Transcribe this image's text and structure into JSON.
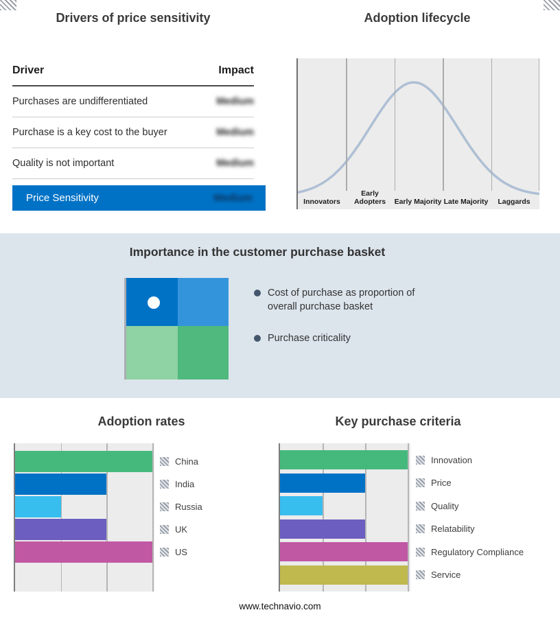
{
  "page": {
    "footer": "www.technavio.com"
  },
  "drivers_panel": {
    "title": "Drivers of price sensitivity",
    "columns": {
      "driver": "Driver",
      "impact": "Impact"
    },
    "rows": [
      {
        "driver": "Purchases are undifferentiated",
        "impact": "Medium",
        "redacted": true
      },
      {
        "driver": "Purchase is a key cost to the buyer",
        "impact": "Medium",
        "redacted": true
      },
      {
        "driver": "Quality is not important",
        "impact": "Medium",
        "redacted": true
      }
    ],
    "summary": {
      "label": "Price Sensitivity",
      "impact": "Medium",
      "redacted": true,
      "bg_color": "#0072C6"
    }
  },
  "basket_panel": {
    "title": "Importance in the customer purchase basket",
    "bullets": [
      "Cost of purchase as proportion of overall purchase basket",
      "Purchase criticality"
    ],
    "quadrant_colors": [
      "#0072C6",
      "#3494DB",
      "#8FD2A4",
      "#4FB97E"
    ],
    "bullet_color": "#44566B"
  },
  "chart_data": [
    {
      "type": "line",
      "title": "Adoption lifecycle",
      "categories": [
        "Innovators",
        "Early Adopters",
        "Early Majority",
        "Late Majority",
        "Laggards"
      ],
      "curve": {
        "shape": "bell",
        "peak_fraction": 0.48,
        "sigma_fraction": 0.18
      },
      "line_color": "#AEBFD4",
      "grid": "vertical",
      "legend_position": "none"
    },
    {
      "type": "bar",
      "title": "Adoption rates",
      "orientation": "horizontal",
      "categories": [
        "China",
        "India",
        "Russia",
        "UK",
        "US"
      ],
      "values": [
        3,
        2,
        1,
        2,
        3
      ],
      "xlim": [
        0,
        3
      ],
      "colors": [
        "#45B97C",
        "#0072C6",
        "#38BDEF",
        "#6B5EC0",
        "#C058A4"
      ],
      "grid": "vertical",
      "legend_position": "right"
    },
    {
      "type": "bar",
      "title": "Key purchase criteria",
      "orientation": "horizontal",
      "categories": [
        "Innovation",
        "Price",
        "Quality",
        "Relatability",
        "Regulatory Compliance",
        "Service"
      ],
      "values": [
        3,
        2,
        1,
        2,
        3,
        3
      ],
      "xlim": [
        0,
        3
      ],
      "colors": [
        "#45B97C",
        "#0072C6",
        "#38BDEF",
        "#6B5EC0",
        "#C058A4",
        "#BFB94E"
      ],
      "grid": "vertical",
      "legend_position": "right"
    }
  ]
}
